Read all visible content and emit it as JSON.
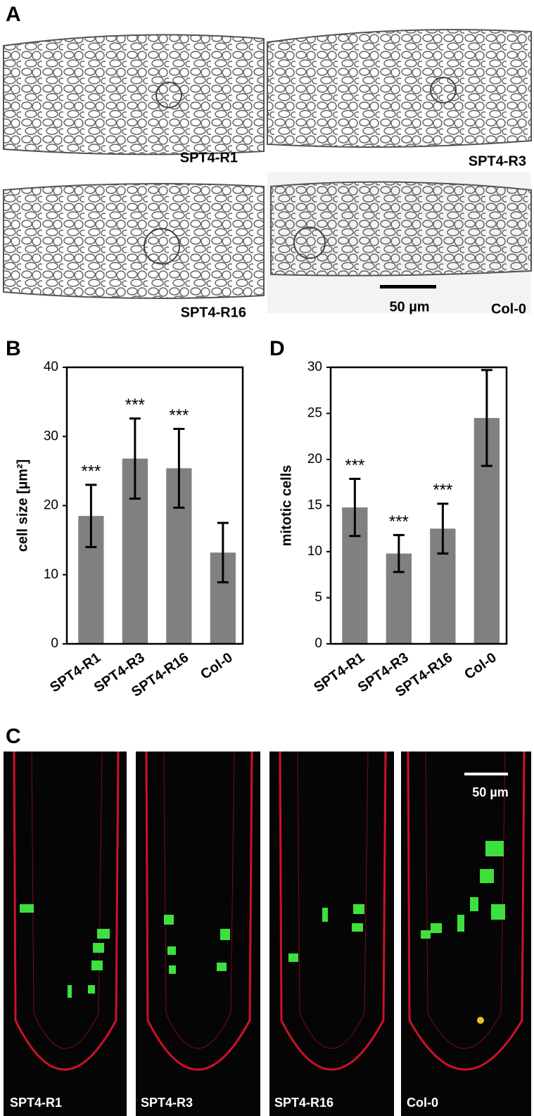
{
  "figure": {
    "panel_a": {
      "letter": "A",
      "image_labels": [
        "SPT4-R1",
        "SPT4-R3",
        "SPT4-R16",
        "Col-0"
      ],
      "scale_bar": "50 µm"
    },
    "panel_c": {
      "letter": "C",
      "image_labels": [
        "SPT4-R1",
        "SPT4-R3",
        "SPT4-R16",
        "Col-0"
      ],
      "scale_bar": "50 µm"
    }
  },
  "chart_data": [
    {
      "type": "bar",
      "panel": "B",
      "ylabel": "cell size [µm²]",
      "categories": [
        "SPT4-R1",
        "SPT4-R3",
        "SPT4-R16",
        "Col-0"
      ],
      "values": [
        18.5,
        26.8,
        25.4,
        13.2
      ],
      "errors": [
        4.5,
        5.8,
        5.7,
        4.3
      ],
      "significance": [
        "***",
        "***",
        "***",
        null
      ],
      "color": "#808080",
      "ylim": [
        0,
        40
      ],
      "yticks": [
        0,
        10,
        20,
        30,
        40
      ]
    },
    {
      "type": "bar",
      "panel": "D",
      "ylabel": "mitotic cells",
      "categories": [
        "SPT4-R1",
        "SPT4-R3",
        "SPT4-R16",
        "Col-0"
      ],
      "values": [
        14.8,
        9.8,
        12.5,
        24.5
      ],
      "errors": [
        3.1,
        2.0,
        2.7,
        5.2
      ],
      "significance": [
        "***",
        "***",
        "***",
        null
      ],
      "color": "#808080",
      "ylim": [
        0,
        30
      ],
      "yticks": [
        0,
        5,
        10,
        15,
        20,
        25,
        30
      ]
    }
  ]
}
